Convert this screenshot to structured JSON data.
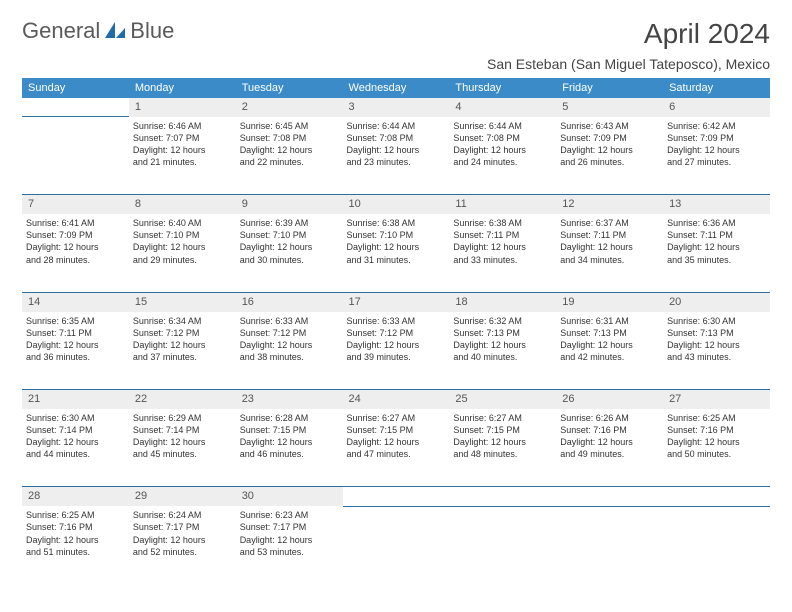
{
  "brand": {
    "part1": "General",
    "part2": "Blue"
  },
  "colors": {
    "header_bg": "#3b8bc8",
    "header_text": "#ffffff",
    "daynum_bg": "#eeeeee",
    "row_border": "#2f6fa0",
    "logo_gray": "#5a5a5a",
    "logo_blue": "#1f6bb0",
    "text": "#333333"
  },
  "title": "April 2024",
  "location": "San Esteban (San Miguel Tateposco), Mexico",
  "weekdays": [
    "Sunday",
    "Monday",
    "Tuesday",
    "Wednesday",
    "Thursday",
    "Friday",
    "Saturday"
  ],
  "weeks": [
    {
      "nums": [
        "",
        "1",
        "2",
        "3",
        "4",
        "5",
        "6"
      ],
      "cells": [
        null,
        {
          "sunrise": "Sunrise: 6:46 AM",
          "sunset": "Sunset: 7:07 PM",
          "d1": "Daylight: 12 hours",
          "d2": "and 21 minutes."
        },
        {
          "sunrise": "Sunrise: 6:45 AM",
          "sunset": "Sunset: 7:08 PM",
          "d1": "Daylight: 12 hours",
          "d2": "and 22 minutes."
        },
        {
          "sunrise": "Sunrise: 6:44 AM",
          "sunset": "Sunset: 7:08 PM",
          "d1": "Daylight: 12 hours",
          "d2": "and 23 minutes."
        },
        {
          "sunrise": "Sunrise: 6:44 AM",
          "sunset": "Sunset: 7:08 PM",
          "d1": "Daylight: 12 hours",
          "d2": "and 24 minutes."
        },
        {
          "sunrise": "Sunrise: 6:43 AM",
          "sunset": "Sunset: 7:09 PM",
          "d1": "Daylight: 12 hours",
          "d2": "and 26 minutes."
        },
        {
          "sunrise": "Sunrise: 6:42 AM",
          "sunset": "Sunset: 7:09 PM",
          "d1": "Daylight: 12 hours",
          "d2": "and 27 minutes."
        }
      ]
    },
    {
      "nums": [
        "7",
        "8",
        "9",
        "10",
        "11",
        "12",
        "13"
      ],
      "cells": [
        {
          "sunrise": "Sunrise: 6:41 AM",
          "sunset": "Sunset: 7:09 PM",
          "d1": "Daylight: 12 hours",
          "d2": "and 28 minutes."
        },
        {
          "sunrise": "Sunrise: 6:40 AM",
          "sunset": "Sunset: 7:10 PM",
          "d1": "Daylight: 12 hours",
          "d2": "and 29 minutes."
        },
        {
          "sunrise": "Sunrise: 6:39 AM",
          "sunset": "Sunset: 7:10 PM",
          "d1": "Daylight: 12 hours",
          "d2": "and 30 minutes."
        },
        {
          "sunrise": "Sunrise: 6:38 AM",
          "sunset": "Sunset: 7:10 PM",
          "d1": "Daylight: 12 hours",
          "d2": "and 31 minutes."
        },
        {
          "sunrise": "Sunrise: 6:38 AM",
          "sunset": "Sunset: 7:11 PM",
          "d1": "Daylight: 12 hours",
          "d2": "and 33 minutes."
        },
        {
          "sunrise": "Sunrise: 6:37 AM",
          "sunset": "Sunset: 7:11 PM",
          "d1": "Daylight: 12 hours",
          "d2": "and 34 minutes."
        },
        {
          "sunrise": "Sunrise: 6:36 AM",
          "sunset": "Sunset: 7:11 PM",
          "d1": "Daylight: 12 hours",
          "d2": "and 35 minutes."
        }
      ]
    },
    {
      "nums": [
        "14",
        "15",
        "16",
        "17",
        "18",
        "19",
        "20"
      ],
      "cells": [
        {
          "sunrise": "Sunrise: 6:35 AM",
          "sunset": "Sunset: 7:11 PM",
          "d1": "Daylight: 12 hours",
          "d2": "and 36 minutes."
        },
        {
          "sunrise": "Sunrise: 6:34 AM",
          "sunset": "Sunset: 7:12 PM",
          "d1": "Daylight: 12 hours",
          "d2": "and 37 minutes."
        },
        {
          "sunrise": "Sunrise: 6:33 AM",
          "sunset": "Sunset: 7:12 PM",
          "d1": "Daylight: 12 hours",
          "d2": "and 38 minutes."
        },
        {
          "sunrise": "Sunrise: 6:33 AM",
          "sunset": "Sunset: 7:12 PM",
          "d1": "Daylight: 12 hours",
          "d2": "and 39 minutes."
        },
        {
          "sunrise": "Sunrise: 6:32 AM",
          "sunset": "Sunset: 7:13 PM",
          "d1": "Daylight: 12 hours",
          "d2": "and 40 minutes."
        },
        {
          "sunrise": "Sunrise: 6:31 AM",
          "sunset": "Sunset: 7:13 PM",
          "d1": "Daylight: 12 hours",
          "d2": "and 42 minutes."
        },
        {
          "sunrise": "Sunrise: 6:30 AM",
          "sunset": "Sunset: 7:13 PM",
          "d1": "Daylight: 12 hours",
          "d2": "and 43 minutes."
        }
      ]
    },
    {
      "nums": [
        "21",
        "22",
        "23",
        "24",
        "25",
        "26",
        "27"
      ],
      "cells": [
        {
          "sunrise": "Sunrise: 6:30 AM",
          "sunset": "Sunset: 7:14 PM",
          "d1": "Daylight: 12 hours",
          "d2": "and 44 minutes."
        },
        {
          "sunrise": "Sunrise: 6:29 AM",
          "sunset": "Sunset: 7:14 PM",
          "d1": "Daylight: 12 hours",
          "d2": "and 45 minutes."
        },
        {
          "sunrise": "Sunrise: 6:28 AM",
          "sunset": "Sunset: 7:15 PM",
          "d1": "Daylight: 12 hours",
          "d2": "and 46 minutes."
        },
        {
          "sunrise": "Sunrise: 6:27 AM",
          "sunset": "Sunset: 7:15 PM",
          "d1": "Daylight: 12 hours",
          "d2": "and 47 minutes."
        },
        {
          "sunrise": "Sunrise: 6:27 AM",
          "sunset": "Sunset: 7:15 PM",
          "d1": "Daylight: 12 hours",
          "d2": "and 48 minutes."
        },
        {
          "sunrise": "Sunrise: 6:26 AM",
          "sunset": "Sunset: 7:16 PM",
          "d1": "Daylight: 12 hours",
          "d2": "and 49 minutes."
        },
        {
          "sunrise": "Sunrise: 6:25 AM",
          "sunset": "Sunset: 7:16 PM",
          "d1": "Daylight: 12 hours",
          "d2": "and 50 minutes."
        }
      ]
    },
    {
      "nums": [
        "28",
        "29",
        "30",
        "",
        "",
        "",
        ""
      ],
      "cells": [
        {
          "sunrise": "Sunrise: 6:25 AM",
          "sunset": "Sunset: 7:16 PM",
          "d1": "Daylight: 12 hours",
          "d2": "and 51 minutes."
        },
        {
          "sunrise": "Sunrise: 6:24 AM",
          "sunset": "Sunset: 7:17 PM",
          "d1": "Daylight: 12 hours",
          "d2": "and 52 minutes."
        },
        {
          "sunrise": "Sunrise: 6:23 AM",
          "sunset": "Sunset: 7:17 PM",
          "d1": "Daylight: 12 hours",
          "d2": "and 53 minutes."
        },
        null,
        null,
        null,
        null
      ]
    }
  ]
}
